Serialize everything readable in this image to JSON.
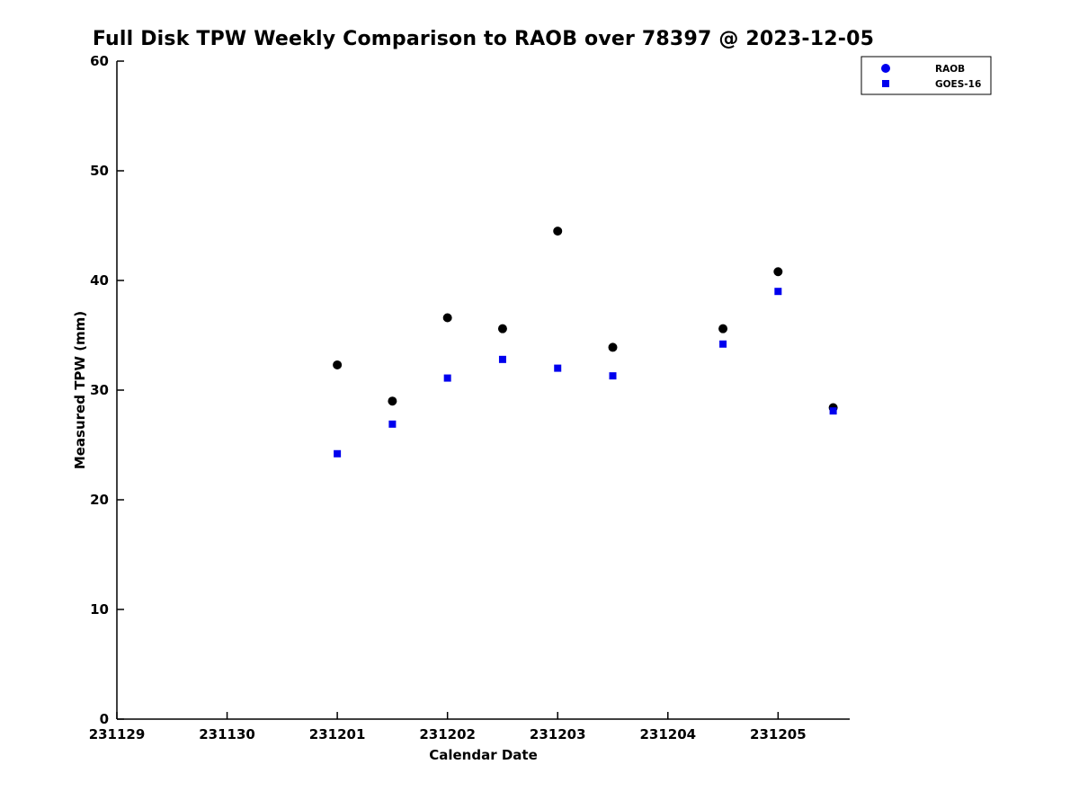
{
  "chart_data": {
    "type": "scatter",
    "title": "Full Disk TPW Weekly Comparison to RAOB over 78397 @ 2023-12-05",
    "xlabel": "Calendar Date",
    "ylabel": "Measured TPW (mm)",
    "x_tick_labels": [
      "231129",
      "231130",
      "231201",
      "231202",
      "231203",
      "231204",
      "231205"
    ],
    "x_tick_positions": [
      0,
      1,
      2,
      3,
      4,
      5,
      6
    ],
    "xlim": [
      0,
      6.65
    ],
    "ylim": [
      0,
      60
    ],
    "y_ticks": [
      0,
      10,
      20,
      30,
      40,
      50,
      60
    ],
    "grid": false,
    "legend_position": "top-right",
    "series": [
      {
        "name": "RAOB",
        "marker": "circle",
        "marker_color": "#000000",
        "legend_marker_color": "#0000ee",
        "x": [
          2.0,
          2.5,
          3.0,
          3.5,
          4.0,
          4.5,
          5.5,
          6.0,
          6.5
        ],
        "x_dates": [
          "231201.0",
          "231201.5",
          "231202.0",
          "231202.5",
          "231203.0",
          "231203.5",
          "231204.5",
          "231205.0",
          "231205.5"
        ],
        "y": [
          32.3,
          29.0,
          36.6,
          35.6,
          44.5,
          33.9,
          35.6,
          40.8,
          28.4
        ]
      },
      {
        "name": "GOES-16",
        "marker": "square",
        "marker_color": "#0000ee",
        "legend_marker_color": "#0000ee",
        "x": [
          2.0,
          2.5,
          3.0,
          3.5,
          4.0,
          4.5,
          5.5,
          6.0,
          6.5
        ],
        "x_dates": [
          "231201.0",
          "231201.5",
          "231202.0",
          "231202.5",
          "231203.0",
          "231203.5",
          "231204.5",
          "231205.0",
          "231205.5"
        ],
        "y": [
          24.2,
          26.9,
          31.1,
          32.8,
          32.0,
          31.3,
          34.2,
          39.0,
          28.1
        ]
      }
    ],
    "axis_color": "#000000",
    "background_color": "#ffffff"
  }
}
